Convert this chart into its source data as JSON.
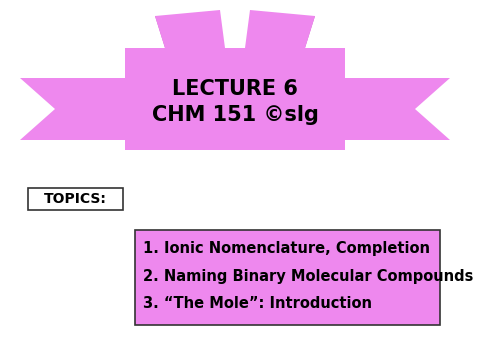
{
  "background_color": "#ffffff",
  "ribbon_color": "#ee88ee",
  "ribbon_dark_color": "#cc66cc",
  "title_line1": "LECTURE 6",
  "title_line2": "CHM 151 ©slg",
  "title_fontsize": 15,
  "title_color": "#000000",
  "topics_label": "TOPICS:",
  "topics_fontsize": 10,
  "content_lines": [
    "1. Ionic Nomenclature, Completion",
    "2. Naming Binary Molecular Compounds",
    "3. “The Mole”: Introduction"
  ],
  "content_fontsize": 10.5
}
